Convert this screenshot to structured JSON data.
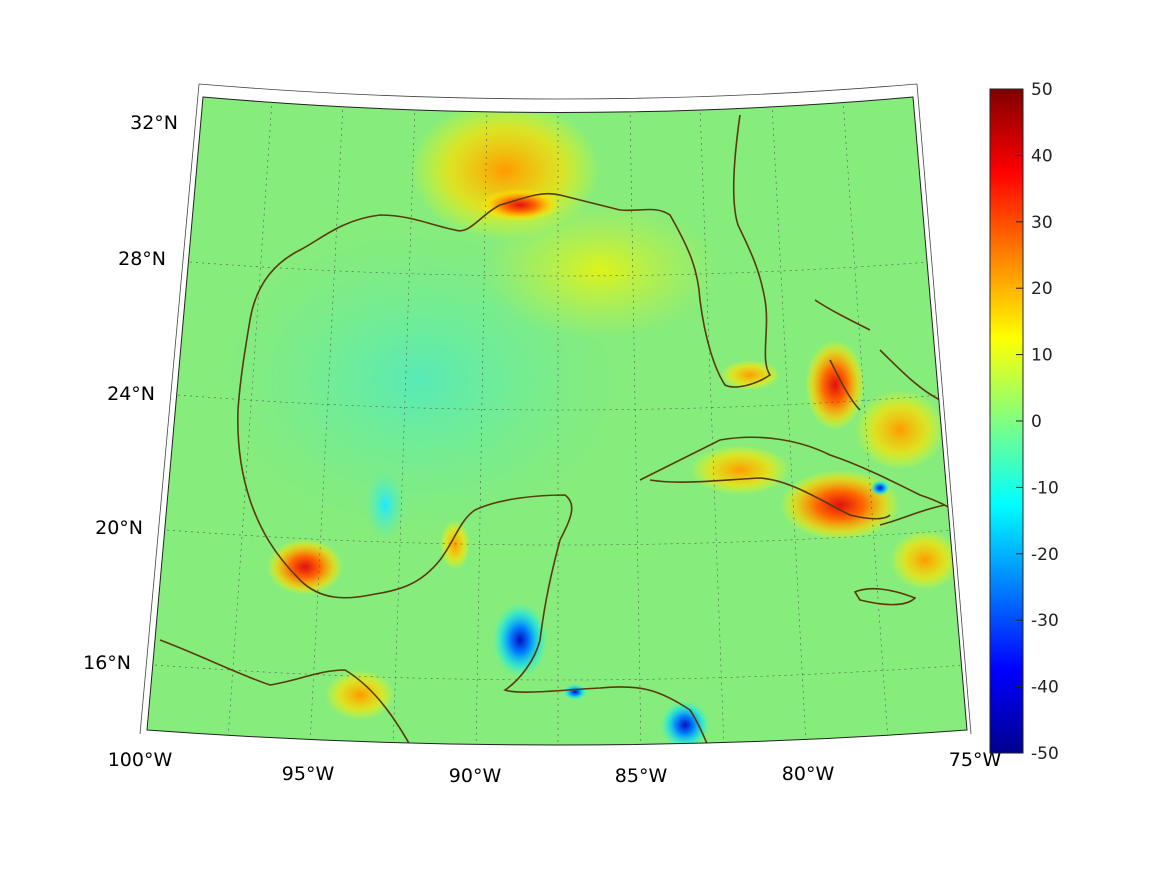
{
  "map": {
    "lat_labels": [
      "32°N",
      "28°N",
      "24°N",
      "20°N",
      "16°N"
    ],
    "lon_labels": [
      "100°W",
      "95°W",
      "90°W",
      "85°W",
      "80°W",
      "75°W"
    ]
  },
  "colorbar": {
    "colormap": "jet",
    "range": [
      -50,
      50
    ],
    "tick_labels": [
      "50",
      "40",
      "30",
      "20",
      "10",
      "0",
      "-10",
      "-20",
      "-30",
      "-40",
      "-50"
    ]
  },
  "colors": {
    "background_field": "#86ec7c",
    "coastline": "#5a3a0a"
  }
}
